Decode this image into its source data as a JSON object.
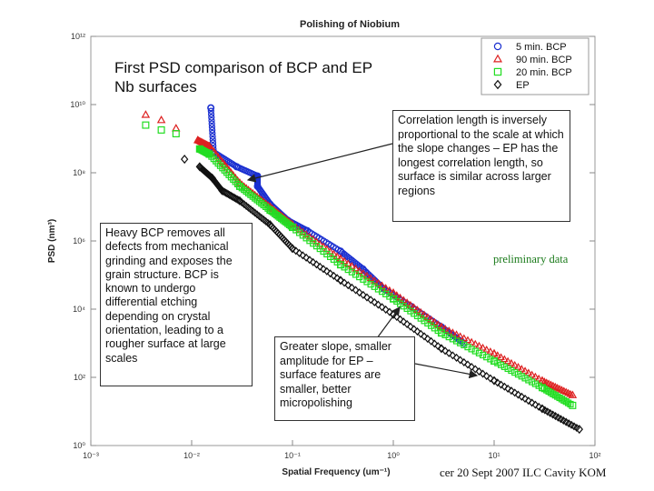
{
  "colors": {
    "bcp5": "#1a2fd0",
    "bcp90": "#dd2020",
    "bcp20": "#22dd22",
    "ep": "#111111",
    "arrow": "#222222",
    "prelim": "#1a7a1a"
  },
  "annotations": {
    "subtitle_line1": "First PSD comparison of BCP and EP",
    "subtitle_line2": "Nb surfaces",
    "correlation": "Correlation length is inversely proportional to the scale at which the slope changes – EP has the longest correlation length, so surface is similar across larger regions",
    "heavy_bcp": "Heavy BCP removes all defects from mechanical grinding and exposes the grain structure. BCP is known to undergo differential etching depending on crystal orientation, leading to a rougher surface at large scales",
    "slope": "Greater slope, smaller amplitude for EP – surface features are smaller, better micropolishing",
    "preliminary": "preliminary data"
  },
  "footer": {
    "text": "cer 20 Sept 2007 ILC Cavity KOM"
  },
  "chart_data": {
    "type": "scatter",
    "title": "Polishing of Niobium",
    "xlabel": "Spatial Frequency (um⁻¹)",
    "ylabel": "PSD (nm³)",
    "x_scale": "log",
    "y_scale": "log",
    "xlim": [
      0.001,
      100
    ],
    "ylim": [
      1,
      1000000000000
    ],
    "x_ticks": [
      {
        "value": 0.001,
        "label": "10⁻³"
      },
      {
        "value": 0.01,
        "label": "10⁻²"
      },
      {
        "value": 0.1,
        "label": "10⁻¹"
      },
      {
        "value": 1,
        "label": "10⁰"
      },
      {
        "value": 10,
        "label": "10¹"
      },
      {
        "value": 100,
        "label": "10²"
      }
    ],
    "y_ticks": [
      {
        "value": 1,
        "label": "10⁰"
      },
      {
        "value": 100,
        "label": "10²"
      },
      {
        "value": 10000,
        "label": "10⁴"
      },
      {
        "value": 1000000,
        "label": "10⁶"
      },
      {
        "value": 100000000,
        "label": "10⁸"
      },
      {
        "value": 10000000000,
        "label": "10¹⁰"
      },
      {
        "value": 1000000000000,
        "label": "10¹²"
      }
    ],
    "legend_position": "top-right",
    "grid": false,
    "series": [
      {
        "name": "5 min. BCP",
        "marker": "circle",
        "color": "#1a2fd0",
        "x": [
          0.0155,
          0.0165,
          0.028,
          0.045,
          0.045,
          0.06,
          0.09,
          0.14,
          0.3,
          0.5,
          0.8,
          1.5,
          3,
          5
        ],
        "y": [
          8000000000,
          400000000,
          150000000,
          80000000,
          40000000,
          12000000,
          4000000,
          2000000,
          500000,
          150000,
          40000,
          12000,
          3000,
          1000
        ]
      },
      {
        "name": "90 min. BCP",
        "marker": "triangle",
        "color": "#dd2020",
        "x": [
          0.0035,
          0.005,
          0.007,
          0.0115,
          0.015,
          0.03,
          0.06,
          0.1,
          0.3,
          1,
          3,
          10,
          30,
          60
        ],
        "y": [
          5000000000,
          3500000000,
          2000000000,
          900000000,
          600000000,
          50000000,
          10000000,
          3000000,
          300000,
          30000,
          3000,
          500,
          80,
          30
        ]
      },
      {
        "name": "20 min. BCP",
        "marker": "square",
        "color": "#22dd22",
        "x": [
          0.0035,
          0.005,
          0.007,
          0.012,
          0.015,
          0.03,
          0.06,
          0.1,
          0.3,
          1,
          3,
          10,
          30,
          60
        ],
        "y": [
          2500000000,
          1800000000,
          1400000000,
          500000000,
          350000000,
          40000000,
          8000000,
          2500000,
          200000,
          20000,
          2000,
          300,
          50,
          15
        ]
      },
      {
        "name": "EP",
        "marker": "diamond",
        "color": "#111111",
        "x": [
          0.0085,
          0.012,
          0.016,
          0.02,
          0.03,
          0.06,
          0.1,
          0.3,
          1,
          3,
          10,
          30,
          70
        ],
        "y": [
          250000000,
          150000000,
          70000000,
          30000000,
          15000000,
          3000000,
          600000,
          70000,
          7000,
          700,
          80,
          12,
          3
        ]
      }
    ]
  }
}
